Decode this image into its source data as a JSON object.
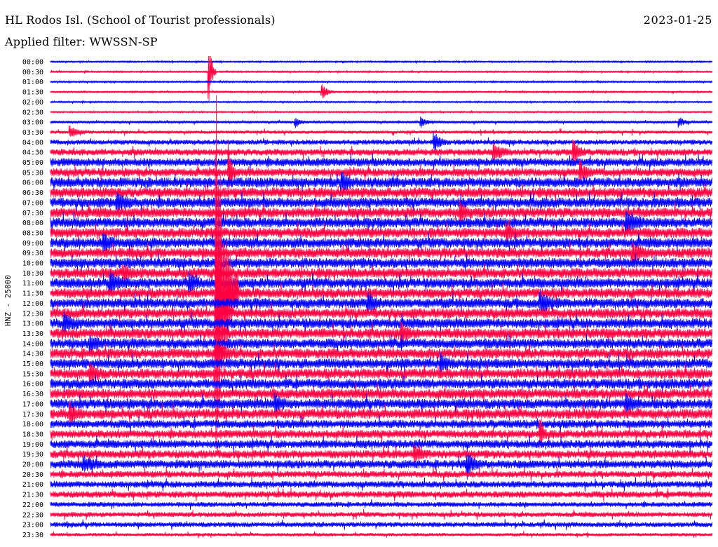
{
  "header": {
    "station": "HL Rodos Isl. (School of Tourist professionals)",
    "date": "2023-01-25",
    "filter": "Applied filter: WWSSN-SP"
  },
  "chart_data": {
    "type": "line",
    "subtype": "helicorder",
    "channel_label": "HNZ - 25000",
    "rows": [
      "00:00",
      "00:30",
      "01:00",
      "01:30",
      "02:00",
      "02:30",
      "03:00",
      "03:30",
      "04:00",
      "04:30",
      "05:00",
      "05:30",
      "06:00",
      "06:30",
      "07:00",
      "07:30",
      "08:00",
      "08:30",
      "09:00",
      "09:30",
      "10:00",
      "10:30",
      "11:00",
      "11:30",
      "12:00",
      "12:30",
      "13:00",
      "13:30",
      "14:00",
      "14:30",
      "15:00",
      "15:30",
      "16:00",
      "16:30",
      "17:00",
      "17:30",
      "18:00",
      "18:30",
      "19:00",
      "19:30",
      "20:00",
      "20:30",
      "21:00",
      "21:30",
      "22:00",
      "22:30",
      "23:00",
      "23:30"
    ],
    "row_minutes": 30,
    "colors": [
      "#0000ff",
      "#ff0040"
    ],
    "noise_level": [
      1,
      1,
      1,
      1,
      1,
      1,
      1.5,
      2,
      3,
      4,
      5,
      5,
      6,
      6,
      6,
      6,
      6,
      6,
      6,
      6,
      6,
      6,
      6,
      6,
      6,
      6,
      6,
      6,
      6,
      6,
      6,
      6,
      6,
      6,
      6,
      6,
      5,
      5,
      5,
      5,
      5,
      4,
      4,
      4,
      3,
      3,
      3,
      2
    ],
    "events": [
      {
        "row": 1,
        "t": 0.24,
        "amp": 55,
        "dur": 0.01
      },
      {
        "row": 3,
        "t": 0.41,
        "amp": 12,
        "dur": 0.02
      },
      {
        "row": 6,
        "t": 0.37,
        "amp": 8,
        "dur": 0.02
      },
      {
        "row": 6,
        "t": 0.56,
        "amp": 8,
        "dur": 0.02
      },
      {
        "row": 6,
        "t": 0.95,
        "amp": 8,
        "dur": 0.02
      },
      {
        "row": 7,
        "t": 0.03,
        "amp": 8,
        "dur": 0.03
      },
      {
        "row": 8,
        "t": 0.58,
        "amp": 15,
        "dur": 0.02
      },
      {
        "row": 9,
        "t": 0.67,
        "amp": 12,
        "dur": 0.03
      },
      {
        "row": 9,
        "t": 0.79,
        "amp": 18,
        "dur": 0.02
      },
      {
        "row": 11,
        "t": 0.27,
        "amp": 45,
        "dur": 0.01
      },
      {
        "row": 11,
        "t": 0.8,
        "amp": 15,
        "dur": 0.02
      },
      {
        "row": 12,
        "t": 0.44,
        "amp": 15,
        "dur": 0.02
      },
      {
        "row": 14,
        "t": 0.1,
        "amp": 12,
        "dur": 0.03
      },
      {
        "row": 15,
        "t": 0.62,
        "amp": 14,
        "dur": 0.02
      },
      {
        "row": 16,
        "t": 0.87,
        "amp": 18,
        "dur": 0.03
      },
      {
        "row": 17,
        "t": 0.69,
        "amp": 14,
        "dur": 0.02
      },
      {
        "row": 18,
        "t": 0.08,
        "amp": 14,
        "dur": 0.02
      },
      {
        "row": 19,
        "t": 0.88,
        "amp": 12,
        "dur": 0.03
      },
      {
        "row": 21,
        "t": 0.11,
        "amp": 14,
        "dur": 0.02
      },
      {
        "row": 22,
        "t": 0.09,
        "amp": 16,
        "dur": 0.03
      },
      {
        "row": 22,
        "t": 0.21,
        "amp": 14,
        "dur": 0.02
      },
      {
        "row": 23,
        "t": 0.25,
        "amp": 300,
        "dur": 0.035
      },
      {
        "row": 24,
        "t": 0.48,
        "amp": 14,
        "dur": 0.02
      },
      {
        "row": 24,
        "t": 0.74,
        "amp": 14,
        "dur": 0.03
      },
      {
        "row": 26,
        "t": 0.02,
        "amp": 12,
        "dur": 0.03
      },
      {
        "row": 27,
        "t": 0.53,
        "amp": 14,
        "dur": 0.02
      },
      {
        "row": 28,
        "t": 0.06,
        "amp": 14,
        "dur": 0.02
      },
      {
        "row": 29,
        "t": 0.25,
        "amp": 20,
        "dur": 0.03
      },
      {
        "row": 30,
        "t": 0.59,
        "amp": 12,
        "dur": 0.02
      },
      {
        "row": 31,
        "t": 0.06,
        "amp": 14,
        "dur": 0.02
      },
      {
        "row": 34,
        "t": 0.34,
        "amp": 12,
        "dur": 0.02
      },
      {
        "row": 34,
        "t": 0.87,
        "amp": 12,
        "dur": 0.02
      },
      {
        "row": 35,
        "t": 0.03,
        "amp": 16,
        "dur": 0.02
      },
      {
        "row": 37,
        "t": 0.74,
        "amp": 20,
        "dur": 0.01
      },
      {
        "row": 39,
        "t": 0.55,
        "amp": 14,
        "dur": 0.02
      },
      {
        "row": 40,
        "t": 0.05,
        "amp": 10,
        "dur": 0.03
      },
      {
        "row": 40,
        "t": 0.63,
        "amp": 18,
        "dur": 0.02
      }
    ]
  }
}
